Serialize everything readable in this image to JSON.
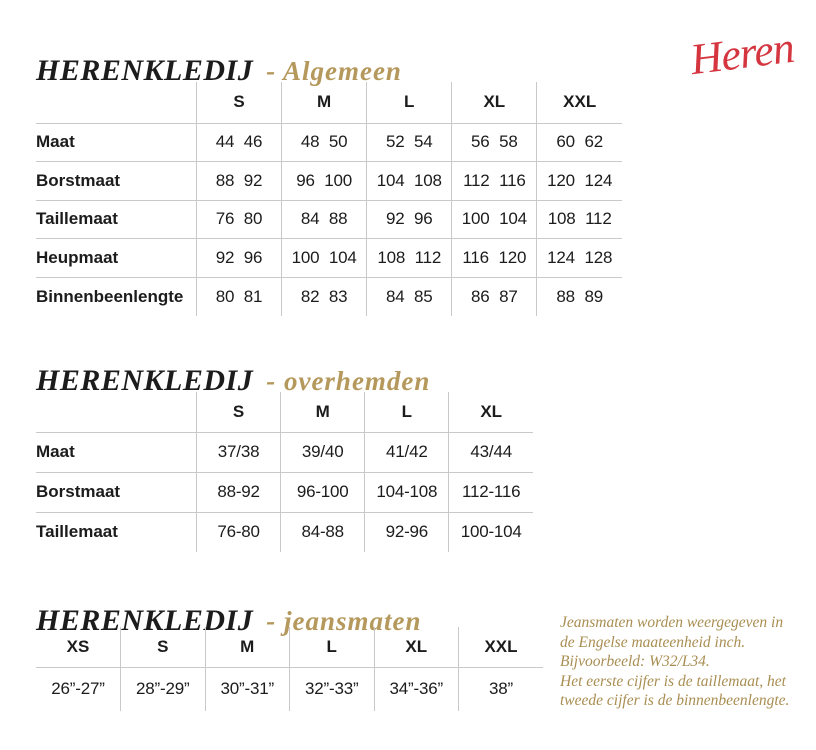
{
  "colors": {
    "ink": "#1c1c1c",
    "gold": "#b5985c",
    "gold-note": "#a98e52",
    "red": "#d4353f",
    "line": "#c9c9c9"
  },
  "logo": {
    "text": "Heren"
  },
  "sections": [
    {
      "id": "algemeen",
      "title_main": "HERENKLEDIJ",
      "title_sub": "- Algemeen",
      "table": {
        "columns": [
          "S",
          "M",
          "L",
          "XL",
          "XXL"
        ],
        "rows": [
          {
            "label": "Maat",
            "values": [
              "44 46",
              "48 50",
              "52 54",
              "56 58",
              "60 62"
            ]
          },
          {
            "label": "Borstmaat",
            "values": [
              "88 92",
              "96 100",
              "104 108",
              "112 116",
              "120 124"
            ]
          },
          {
            "label": "Taillemaat",
            "values": [
              "76 80",
              "84 88",
              "92 96",
              "100 104",
              "108 112"
            ]
          },
          {
            "label": "Heupmaat",
            "values": [
              "92 96",
              "100 104",
              "108 112",
              "116 120",
              "124 128"
            ]
          },
          {
            "label": "Binnenbeenlengte",
            "values": [
              "80 81",
              "82 83",
              "84 85",
              "86 87",
              "88 89"
            ]
          }
        ]
      }
    },
    {
      "id": "overhemden",
      "title_main": "HERENKLEDIJ",
      "title_sub": "- overhemden",
      "table": {
        "columns": [
          "S",
          "M",
          "L",
          "XL"
        ],
        "rows": [
          {
            "label": "Maat",
            "values": [
              "37/38",
              "39/40",
              "41/42",
              "43/44"
            ]
          },
          {
            "label": "Borstmaat",
            "values": [
              "88-92",
              "96-100",
              "104-108",
              "112-116"
            ]
          },
          {
            "label": "Taillemaat",
            "values": [
              "76-80",
              "84-88",
              "92-96",
              "100-104"
            ]
          }
        ]
      }
    },
    {
      "id": "jeansmaten",
      "title_main": "HERENKLEDIJ",
      "title_sub": "- jeansmaten",
      "table": {
        "columns": [
          "XS",
          "S",
          "M",
          "L",
          "XL",
          "XXL"
        ],
        "rows": [
          {
            "label": null,
            "values": [
              "26”-27”",
              "28”-29”",
              "30”-31”",
              "32”-33”",
              "34”-36”",
              "38”"
            ]
          }
        ]
      },
      "note_lines": [
        "Jeansmaten worden weergegeven in",
        "de Engelse maateenheid inch.",
        "Bijvoorbeeld: W32/L34.",
        "Het eerste cijfer is de taillemaat, het",
        "tweede cijfer is de binnenbeenlengte."
      ]
    }
  ]
}
